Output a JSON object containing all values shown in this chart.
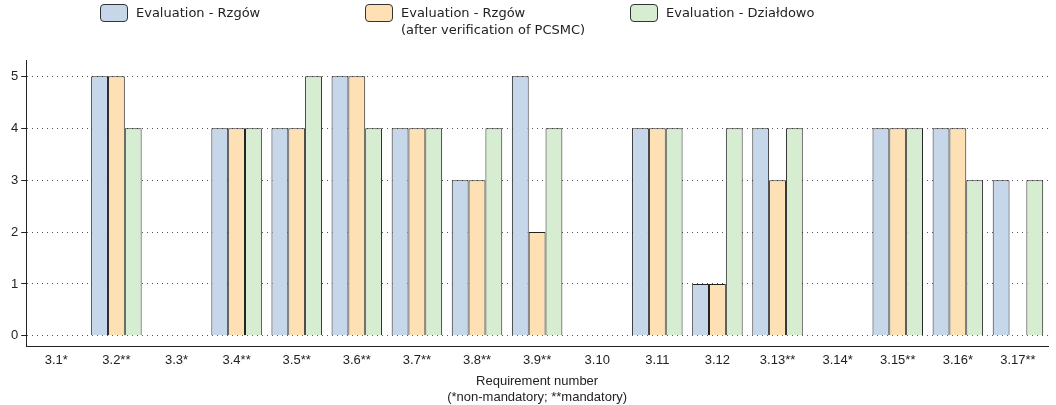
{
  "chart_data": {
    "type": "bar",
    "xlabel": "Requirement number\n(*non-mandatory; **mandatory)",
    "categories": [
      "3.1*",
      "3.2**",
      "3.3*",
      "3.4**",
      "3.5**",
      "3.6**",
      "3.7**",
      "3.8**",
      "3.9**",
      "3.10",
      "3.11",
      "3.12",
      "3.13**",
      "3.14*",
      "3.15**",
      "3.16*",
      "3.17**"
    ],
    "series": [
      {
        "name": "Evaluation - Rzgów",
        "color": "#c6d7ea",
        "values": [
          null,
          5,
          null,
          4,
          4,
          5,
          4,
          3,
          5,
          null,
          4,
          1,
          4,
          null,
          4,
          4,
          3
        ]
      },
      {
        "name": "Evaluation - Rzgów\n(after verification of PCSMC)",
        "color": "#fde1b4",
        "values": [
          null,
          5,
          null,
          4,
          4,
          5,
          4,
          3,
          2,
          null,
          4,
          1,
          3,
          null,
          4,
          4,
          null
        ]
      },
      {
        "name": "Evaluation - Działdowo",
        "color": "#d6edd2",
        "values": [
          null,
          4,
          null,
          4,
          5,
          4,
          4,
          4,
          4,
          null,
          4,
          4,
          4,
          null,
          4,
          3,
          3
        ]
      }
    ],
    "ylim": [
      -0.2,
      5.3
    ],
    "yticks": [
      0,
      1,
      2,
      3,
      4,
      5
    ],
    "grid": "y",
    "legend": "top"
  }
}
